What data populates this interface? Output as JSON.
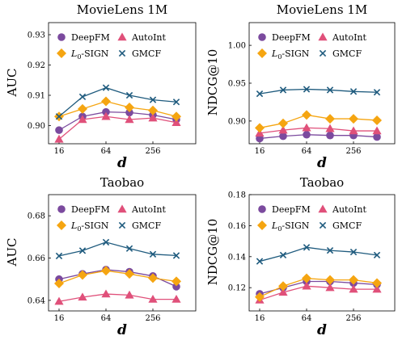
{
  "colors": {
    "DeepFM": "#7b4a9e",
    "AutoInt": "#e0507a",
    "L0-SIGN": "#f5a511",
    "GMCF": "#1f5b7e"
  },
  "chart_data": [
    {
      "type": "line",
      "title": "MovieLens 1M",
      "xlabel": "d",
      "ylabel": "AUC",
      "x": [
        16,
        32,
        64,
        128,
        256,
        512
      ],
      "xticks": [
        "16",
        "64",
        "256"
      ],
      "ylim": [
        0.894,
        0.934
      ],
      "yticks": [
        "0.90",
        "0.91",
        "0.92",
        "0.93"
      ],
      "legend": [
        "DeepFM",
        "AutoInt",
        "L0-SIGN",
        "GMCF"
      ],
      "series": [
        {
          "name": "DeepFM",
          "values": [
            0.8985,
            0.903,
            0.9045,
            0.9043,
            0.9035,
            0.902
          ]
        },
        {
          "name": "AutoInt",
          "values": [
            0.8955,
            0.902,
            0.903,
            0.902,
            0.9025,
            0.901
          ]
        },
        {
          "name": "L0-SIGN",
          "values": [
            0.903,
            0.9055,
            0.908,
            0.906,
            0.905,
            0.903
          ]
        },
        {
          "name": "GMCF",
          "values": [
            0.903,
            0.9095,
            0.9125,
            0.91,
            0.9085,
            0.9078
          ]
        }
      ]
    },
    {
      "type": "line",
      "title": "MovieLens 1M",
      "xlabel": "d",
      "ylabel": "NDCG@10",
      "x": [
        16,
        32,
        64,
        128,
        256,
        512
      ],
      "xticks": [
        "16",
        "64",
        "256"
      ],
      "ylim": [
        0.87,
        1.03
      ],
      "yticks": [
        "0.90",
        "0.95",
        "1.00"
      ],
      "legend": [
        "DeepFM",
        "AutoInt",
        "L0-SIGN",
        "GMCF"
      ],
      "series": [
        {
          "name": "DeepFM",
          "values": [
            0.877,
            0.88,
            0.882,
            0.881,
            0.881,
            0.879
          ]
        },
        {
          "name": "AutoInt",
          "values": [
            0.884,
            0.888,
            0.891,
            0.89,
            0.887,
            0.887
          ]
        },
        {
          "name": "L0-SIGN",
          "values": [
            0.891,
            0.897,
            0.908,
            0.903,
            0.903,
            0.901
          ]
        },
        {
          "name": "GMCF",
          "values": [
            0.936,
            0.941,
            0.942,
            0.941,
            0.939,
            0.938
          ]
        }
      ]
    },
    {
      "type": "line",
      "title": "Taobao",
      "xlabel": "d",
      "ylabel": "AUC",
      "x": [
        16,
        32,
        64,
        128,
        256,
        512
      ],
      "xticks": [
        "16",
        "64",
        "256"
      ],
      "ylim": [
        0.635,
        0.69
      ],
      "yticks": [
        "0.64",
        "0.66",
        "0.68"
      ],
      "legend": [
        "DeepFM",
        "AutoInt",
        "L0-SIGN",
        "GMCF"
      ],
      "series": [
        {
          "name": "DeepFM",
          "values": [
            0.65,
            0.6525,
            0.6545,
            0.6535,
            0.6515,
            0.6465
          ]
        },
        {
          "name": "AutoInt",
          "values": [
            0.6395,
            0.6415,
            0.643,
            0.6425,
            0.6405,
            0.6405
          ]
        },
        {
          "name": "L0-SIGN",
          "values": [
            0.648,
            0.652,
            0.654,
            0.6525,
            0.6505,
            0.649
          ]
        },
        {
          "name": "GMCF",
          "values": [
            0.661,
            0.6635,
            0.6675,
            0.6645,
            0.6618,
            0.6612
          ]
        }
      ]
    },
    {
      "type": "line",
      "title": "Taobao",
      "xlabel": "d",
      "ylabel": "NDCG@10",
      "x": [
        16,
        32,
        64,
        128,
        256,
        512
      ],
      "xticks": [
        "16",
        "64",
        "256"
      ],
      "ylim": [
        0.105,
        0.18
      ],
      "yticks": [
        "0.12",
        "0.14",
        "0.16",
        "0.18"
      ],
      "legend": [
        "DeepFM",
        "AutoInt",
        "L0-SIGN",
        "GMCF"
      ],
      "series": [
        {
          "name": "DeepFM",
          "values": [
            0.116,
            0.12,
            0.124,
            0.124,
            0.123,
            0.122
          ]
        },
        {
          "name": "AutoInt",
          "values": [
            0.112,
            0.117,
            0.121,
            0.12,
            0.119,
            0.119
          ]
        },
        {
          "name": "L0-SIGN",
          "values": [
            0.114,
            0.121,
            0.126,
            0.125,
            0.125,
            0.123
          ]
        },
        {
          "name": "GMCF",
          "values": [
            0.137,
            0.141,
            0.146,
            0.144,
            0.143,
            0.141
          ]
        }
      ]
    }
  ]
}
